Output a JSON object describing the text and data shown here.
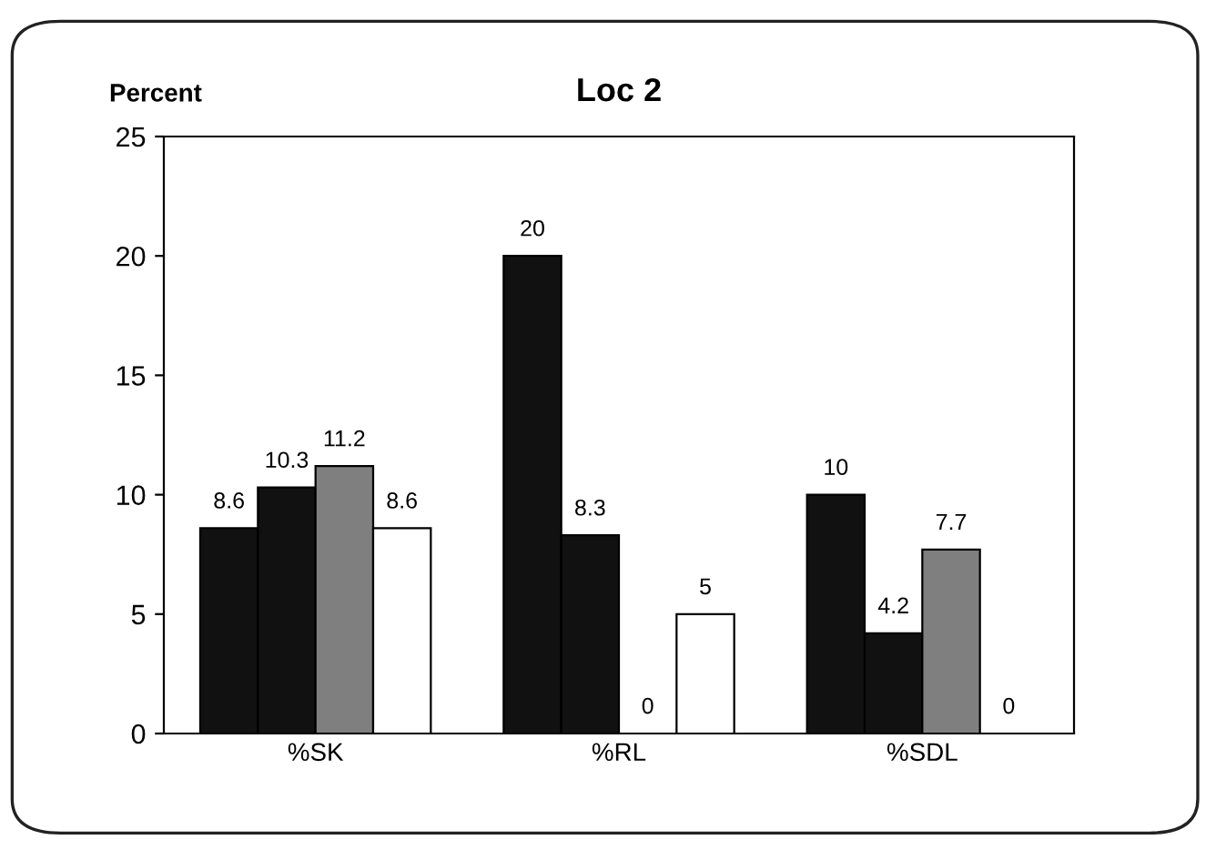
{
  "chart_data": {
    "type": "bar",
    "title": "Loc 2",
    "ylabel": "Percent",
    "categories": [
      "%SK",
      "%RL",
      "%SDL"
    ],
    "series": [
      {
        "color": "#111111",
        "values": [
          8.6,
          20,
          10
        ]
      },
      {
        "color": "#111111",
        "values": [
          10.3,
          8.3,
          4.2
        ]
      },
      {
        "color": "#7f7f7f",
        "values": [
          11.2,
          0,
          7.7
        ]
      },
      {
        "color": "#ffffff",
        "values": [
          8.6,
          5,
          0
        ]
      }
    ],
    "ylim": [
      0,
      25
    ],
    "yticks": [
      0,
      5,
      10,
      15,
      20,
      25
    ],
    "grid": false,
    "legend": false,
    "data_labels": true
  }
}
